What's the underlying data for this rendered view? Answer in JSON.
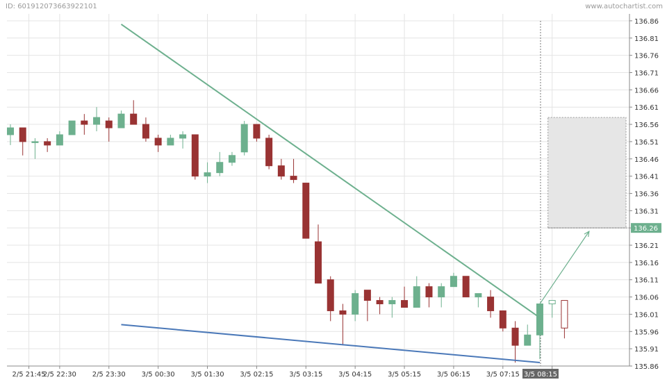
{
  "header": {
    "id_text": "ID: 601912073663922101",
    "brand": "www.autochartist.com"
  },
  "colors": {
    "bull": "#6db08e",
    "bear": "#993333",
    "resistance_line": "#6db08e",
    "support_line": "#4a78b8",
    "projection_box": "#e6e6e6",
    "price_badge": "#6db08e",
    "time_badge": "#666666"
  },
  "chart_data": {
    "type": "candlestick",
    "ylim": [
      135.86,
      136.88
    ],
    "y_ticks": [
      "136.86",
      "136.81",
      "136.76",
      "136.71",
      "136.66",
      "136.61",
      "136.56",
      "136.51",
      "136.46",
      "136.41",
      "136.36",
      "136.31",
      "136.26",
      "136.21",
      "136.16",
      "136.11",
      "136.06",
      "136.01",
      "135.96",
      "135.91",
      "135.86"
    ],
    "x_ticks": [
      {
        "i": 1.5,
        "label": "2/5 21:45"
      },
      {
        "i": 4,
        "label": "2/5 22:30"
      },
      {
        "i": 8,
        "label": "2/5 23:30"
      },
      {
        "i": 12,
        "label": "3/5 00:30"
      },
      {
        "i": 16,
        "label": "3/5 01:30"
      },
      {
        "i": 20,
        "label": "3/5 02:15"
      },
      {
        "i": 24,
        "label": "3/5 03:15"
      },
      {
        "i": 28,
        "label": "3/5 04:15"
      },
      {
        "i": 32,
        "label": "3/5 05:15"
      },
      {
        "i": 36,
        "label": "3/5 06:15"
      },
      {
        "i": 40,
        "label": "3/5 07:15"
      },
      {
        "i": 44,
        "label": "15"
      }
    ],
    "candles": [
      {
        "o": 136.53,
        "h": 136.56,
        "l": 136.5,
        "c": 136.55
      },
      {
        "o": 136.55,
        "h": 136.55,
        "l": 136.47,
        "c": 136.51
      },
      {
        "o": 136.51,
        "h": 136.52,
        "l": 136.46,
        "c": 136.51
      },
      {
        "o": 136.51,
        "h": 136.52,
        "l": 136.48,
        "c": 136.5
      },
      {
        "o": 136.5,
        "h": 136.54,
        "l": 136.5,
        "c": 136.53
      },
      {
        "o": 136.53,
        "h": 136.57,
        "l": 136.53,
        "c": 136.57
      },
      {
        "o": 136.57,
        "h": 136.59,
        "l": 136.53,
        "c": 136.56
      },
      {
        "o": 136.56,
        "h": 136.61,
        "l": 136.54,
        "c": 136.58
      },
      {
        "o": 136.57,
        "h": 136.58,
        "l": 136.51,
        "c": 136.55
      },
      {
        "o": 136.55,
        "h": 136.6,
        "l": 136.55,
        "c": 136.59
      },
      {
        "o": 136.59,
        "h": 136.63,
        "l": 136.56,
        "c": 136.56
      },
      {
        "o": 136.56,
        "h": 136.58,
        "l": 136.51,
        "c": 136.52
      },
      {
        "o": 136.52,
        "h": 136.53,
        "l": 136.48,
        "c": 136.5
      },
      {
        "o": 136.5,
        "h": 136.53,
        "l": 136.5,
        "c": 136.52
      },
      {
        "o": 136.52,
        "h": 136.54,
        "l": 136.49,
        "c": 136.53
      },
      {
        "o": 136.53,
        "h": 136.53,
        "l": 136.4,
        "c": 136.41
      },
      {
        "o": 136.41,
        "h": 136.45,
        "l": 136.39,
        "c": 136.42
      },
      {
        "o": 136.42,
        "h": 136.48,
        "l": 136.41,
        "c": 136.45
      },
      {
        "o": 136.45,
        "h": 136.48,
        "l": 136.44,
        "c": 136.47
      },
      {
        "o": 136.48,
        "h": 136.57,
        "l": 136.47,
        "c": 136.56
      },
      {
        "o": 136.56,
        "h": 136.56,
        "l": 136.51,
        "c": 136.52
      },
      {
        "o": 136.52,
        "h": 136.53,
        "l": 136.43,
        "c": 136.44
      },
      {
        "o": 136.44,
        "h": 136.46,
        "l": 136.4,
        "c": 136.41
      },
      {
        "o": 136.41,
        "h": 136.46,
        "l": 136.39,
        "c": 136.4
      },
      {
        "o": 136.39,
        "h": 136.39,
        "l": 136.23,
        "c": 136.23
      },
      {
        "o": 136.22,
        "h": 136.27,
        "l": 136.1,
        "c": 136.1
      },
      {
        "o": 136.11,
        "h": 136.12,
        "l": 135.99,
        "c": 136.02
      },
      {
        "o": 136.02,
        "h": 136.04,
        "l": 135.92,
        "c": 136.01
      },
      {
        "o": 136.01,
        "h": 136.08,
        "l": 135.99,
        "c": 136.07
      },
      {
        "o": 136.08,
        "h": 136.08,
        "l": 135.99,
        "c": 136.05
      },
      {
        "o": 136.05,
        "h": 136.06,
        "l": 136.01,
        "c": 136.04
      },
      {
        "o": 136.04,
        "h": 136.06,
        "l": 136.0,
        "c": 136.05
      },
      {
        "o": 136.05,
        "h": 136.09,
        "l": 136.03,
        "c": 136.03
      },
      {
        "o": 136.03,
        "h": 136.12,
        "l": 136.03,
        "c": 136.09
      },
      {
        "o": 136.09,
        "h": 136.1,
        "l": 136.03,
        "c": 136.06
      },
      {
        "o": 136.06,
        "h": 136.1,
        "l": 136.03,
        "c": 136.09
      },
      {
        "o": 136.09,
        "h": 136.13,
        "l": 136.09,
        "c": 136.12
      },
      {
        "o": 136.12,
        "h": 136.12,
        "l": 136.06,
        "c": 136.06
      },
      {
        "o": 136.06,
        "h": 136.07,
        "l": 136.03,
        "c": 136.07
      },
      {
        "o": 136.06,
        "h": 136.08,
        "l": 136.0,
        "c": 136.02
      },
      {
        "o": 136.02,
        "h": 136.02,
        "l": 135.96,
        "c": 135.97
      },
      {
        "o": 135.97,
        "h": 135.99,
        "l": 135.87,
        "c": 135.92
      },
      {
        "o": 135.92,
        "h": 135.98,
        "l": 135.92,
        "c": 135.95
      },
      {
        "o": 135.95,
        "h": 136.03,
        "l": 135.88,
        "c": 136.04
      },
      {
        "o": 136.04,
        "h": 136.05,
        "l": 136.0,
        "c": 136.05
      },
      {
        "o": 136.05,
        "h": 136.05,
        "l": 135.94,
        "c": 135.97
      }
    ],
    "pattern": {
      "resistance": {
        "from": [
          9,
          136.85
        ],
        "to": [
          43,
          136.0
        ]
      },
      "support": {
        "from": [
          9,
          135.98
        ],
        "to": [
          43,
          135.87
        ]
      },
      "projection_arrow": {
        "from": [
          43,
          136.04
        ],
        "to": [
          47,
          136.25
        ]
      },
      "projection_range": {
        "i_from": 44,
        "i_to": 50,
        "y_low": 136.26,
        "y_high": 136.58
      }
    },
    "current_price_label": "136.26",
    "time_marker": {
      "i": 43,
      "label": "3/5 08:15"
    },
    "hollow_candle_indexes": [
      44,
      45
    ]
  }
}
